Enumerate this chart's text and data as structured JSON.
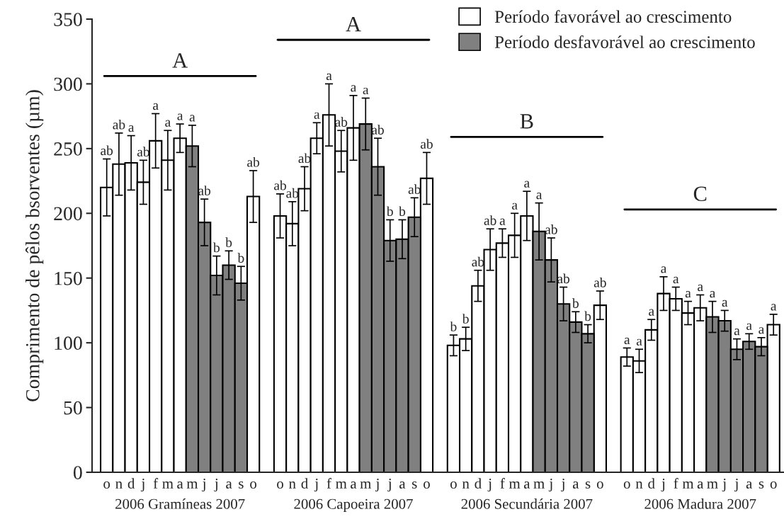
{
  "chart_data": {
    "type": "bar",
    "ylabel": "Comprimento de pêlos bsorventes (µm)",
    "categories": [
      "o",
      "n",
      "d",
      "j",
      "f",
      "m",
      "a",
      "m",
      "j",
      "j",
      "a",
      "s",
      "o",
      "o",
      "n",
      "d",
      "j",
      "f",
      "m",
      "a",
      "m",
      "j",
      "j",
      "a",
      "s",
      "o",
      "o",
      "n",
      "d",
      "j",
      "f",
      "m",
      "a",
      "m",
      "j",
      "j",
      "a",
      "s",
      "o",
      "o",
      "n",
      "d",
      "j",
      "f",
      "m",
      "a",
      "m",
      "j",
      "j",
      "a",
      "s",
      "o"
    ],
    "series": [
      {
        "name": "Período favorável ao crescimento",
        "color": "#ffffff",
        "values": [
          220,
          238,
          239,
          224,
          256,
          241,
          258,
          null,
          null,
          null,
          null,
          null,
          213,
          198,
          192,
          219,
          258,
          276,
          248,
          266,
          null,
          null,
          null,
          null,
          null,
          227,
          98,
          103,
          144,
          172,
          177,
          183,
          198,
          null,
          null,
          null,
          null,
          null,
          129,
          89,
          86,
          110,
          138,
          134,
          123,
          127,
          null,
          null,
          null,
          null,
          null,
          114
        ],
        "errors": [
          22,
          24,
          21,
          17,
          21,
          23,
          11,
          null,
          null,
          null,
          null,
          null,
          20,
          17,
          17,
          17,
          12,
          24,
          16,
          25,
          null,
          null,
          null,
          null,
          null,
          20,
          8,
          9,
          12,
          16,
          11,
          17,
          19,
          null,
          null,
          null,
          null,
          null,
          11,
          7,
          9,
          8,
          13,
          9,
          9,
          10,
          null,
          null,
          null,
          null,
          null,
          8
        ],
        "value_labels": [
          "ab",
          "ab",
          "a",
          "ab",
          "a",
          "a",
          "a",
          null,
          null,
          null,
          null,
          null,
          "ab",
          "ab",
          "ab",
          "ab",
          "a",
          "a",
          "ab",
          "a",
          null,
          null,
          null,
          null,
          null,
          "ab",
          "b",
          "b",
          "ab",
          "ab",
          "a",
          "a",
          "a",
          null,
          null,
          null,
          null,
          null,
          "ab",
          "a",
          "a",
          "a",
          "a",
          "a",
          "a",
          "a",
          null,
          null,
          null,
          null,
          null,
          "a"
        ]
      },
      {
        "name": "Período desfavorável ao crescimento",
        "color": "#808080",
        "values": [
          null,
          null,
          null,
          null,
          null,
          null,
          null,
          252,
          193,
          152,
          160,
          146,
          null,
          null,
          null,
          null,
          null,
          null,
          null,
          null,
          269,
          236,
          179,
          180,
          197,
          null,
          null,
          null,
          null,
          null,
          null,
          null,
          null,
          186,
          164,
          130,
          116,
          107,
          null,
          null,
          null,
          null,
          null,
          null,
          null,
          null,
          120,
          117,
          95,
          101,
          97,
          null
        ],
        "errors": [
          null,
          null,
          null,
          null,
          null,
          null,
          null,
          16,
          18,
          15,
          11,
          13,
          null,
          null,
          null,
          null,
          null,
          null,
          null,
          null,
          20,
          22,
          16,
          15,
          15,
          null,
          null,
          null,
          null,
          null,
          null,
          null,
          null,
          22,
          17,
          13,
          8,
          7,
          null,
          null,
          null,
          null,
          null,
          null,
          null,
          null,
          12,
          8,
          8,
          6,
          7,
          null
        ],
        "value_labels": [
          null,
          null,
          null,
          null,
          null,
          null,
          null,
          "a",
          "ab",
          "b",
          "b",
          "b",
          null,
          null,
          null,
          null,
          null,
          null,
          null,
          null,
          "a",
          "ab",
          "b",
          "b",
          "ab",
          null,
          null,
          null,
          null,
          null,
          null,
          null,
          null,
          "a",
          "ab",
          "ab",
          "b",
          "b",
          null,
          null,
          null,
          null,
          null,
          null,
          null,
          null,
          "a",
          "a",
          "a",
          "a",
          "a",
          null
        ]
      }
    ],
    "ylim": [
      0,
      350
    ],
    "yticks": [
      0,
      50,
      100,
      150,
      200,
      250,
      300,
      350
    ],
    "legend": "top right",
    "ref_lines": [
      {
        "axis": "y",
        "value": 306,
        "label": "A"
      },
      {
        "axis": "y",
        "value": 334,
        "label": "A"
      },
      {
        "axis": "y",
        "value": 259,
        "label": "B"
      },
      {
        "axis": "y",
        "value": 203,
        "label": "C"
      }
    ],
    "annotations": [
      "2006 Gramíneas 2007",
      "2006 Capoeira 2007",
      "2006 Secundária 2007",
      "2006 Madura 2007"
    ]
  }
}
